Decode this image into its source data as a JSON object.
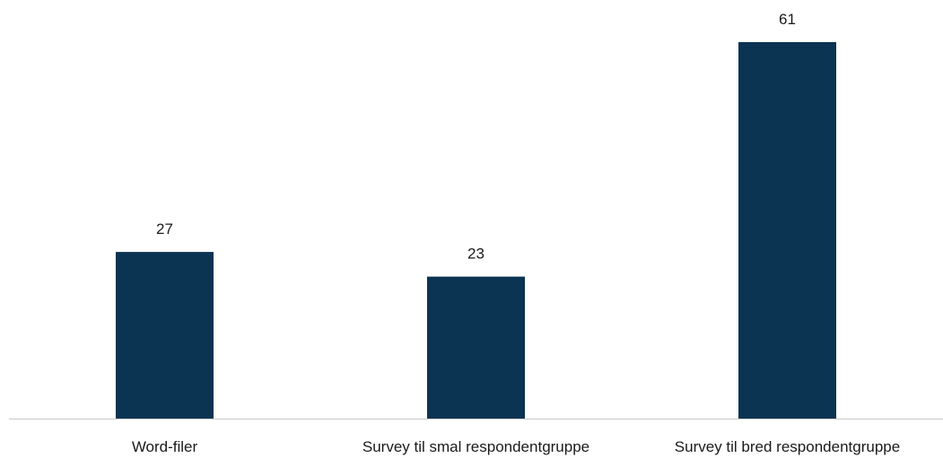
{
  "chart_data": {
    "type": "bar",
    "categories": [
      "Word-filer",
      "Survey til smal respondentgruppe",
      "Survey til bred respondentgruppe"
    ],
    "values": [
      27,
      23,
      61
    ],
    "data_labels": [
      "27",
      "23",
      "61"
    ],
    "title": "",
    "xlabel": "",
    "ylabel": "",
    "ylim": [
      0,
      61
    ],
    "grid": false,
    "legend": "none",
    "bar_color": "#0b3352",
    "axis_color": "#c8c8c8"
  }
}
